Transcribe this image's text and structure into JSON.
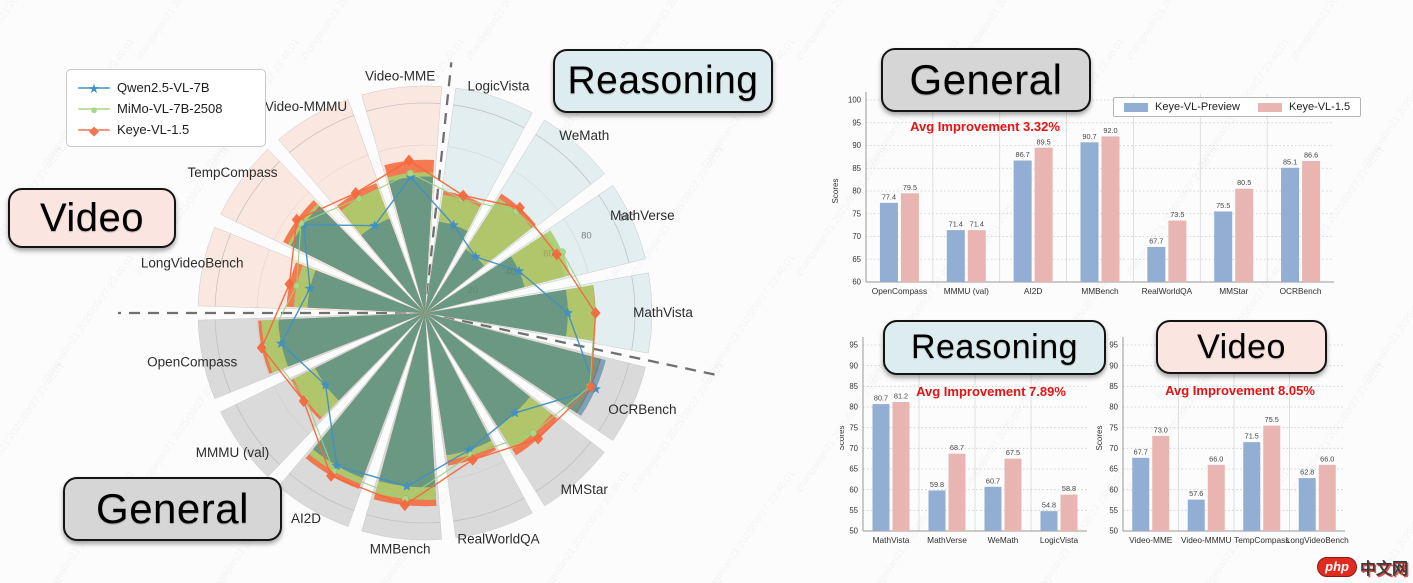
{
  "watermark": {
    "logo_text": "php",
    "site_text": "中文网",
    "stamp_text": "zhangwjian21 2025/09/27 23:46:01"
  },
  "boxes": {
    "radar_video": "Video",
    "radar_reasoning": "Reasoning",
    "radar_general": "General",
    "bar_general": "General",
    "bar_reasoning": "Reasoning",
    "bar_video": "Video"
  },
  "radar": {
    "legend": [
      {
        "label": "Qwen2.5-VL-7B",
        "glyph": "★",
        "color": "#3f90c4"
      },
      {
        "label": "MiMo-VL-7B-2508",
        "glyph": "●",
        "color": "#a9d585"
      },
      {
        "label": "Keye-VL-1.5",
        "glyph": "◆",
        "color": "#f4744d"
      }
    ]
  },
  "charts": {
    "general": {
      "improvement": "Avg Improvement 3.32%"
    },
    "reasoning": {
      "improvement": "Avg Improvement 7.89%"
    },
    "video": {
      "improvement": "Avg Improvement 8.05%"
    }
  },
  "chart_data": [
    {
      "type": "radar-polar-bar",
      "title": "Model comparison radar",
      "rlim": [
        0,
        100
      ],
      "rticks": [
        20,
        40,
        60,
        80,
        100
      ],
      "categories": [
        "LogicVista",
        "WeMath",
        "MathVerse",
        "MathVista",
        "OCRBench",
        "MMStar",
        "RealWorldQA",
        "MMBench",
        "AI2D",
        "MMMU (val)",
        "OpenCompass",
        "LongVideoBench",
        "TempCompass",
        "Video-MMMU",
        "Video-MME"
      ],
      "sections": [
        {
          "name": "Reasoning",
          "start_index": 0,
          "count": 4,
          "bg": "#e3eef0"
        },
        {
          "name": "General",
          "start_index": 4,
          "count": 7,
          "bg": "#dadadb"
        },
        {
          "name": "Video",
          "start_index": 11,
          "count": 4,
          "bg": "#fae8e0"
        }
      ],
      "series": [
        {
          "name": "Qwen2.5-VL-7B",
          "marker": "star",
          "line": "#3f90c4",
          "fill": "rgba(50,115,150,0.55)",
          "values": [
            44,
            36,
            49,
            68,
            89,
            64,
            68.5,
            83,
            84,
            58.5,
            70,
            56,
            71.5,
            48,
            65
          ]
        },
        {
          "name": "MiMo-VL-7B-2508",
          "marker": "circle",
          "line": "#9ed17d",
          "fill": "rgba(170,205,110,0.9)",
          "values": [
            57,
            65,
            71.5,
            81,
            86,
            77,
            71,
            89,
            87,
            70,
            78,
            62.5,
            73,
            63,
            67
          ]
        },
        {
          "name": "Keye-VL-1.5",
          "marker": "diamond",
          "line": "#f4683c",
          "fill": "rgba(242,106,62,0.88)",
          "values": [
            58.8,
            67.5,
            68.7,
            81.2,
            86.6,
            80.5,
            73.5,
            92,
            89.5,
            71.4,
            79.5,
            66,
            75.5,
            66,
            73
          ]
        }
      ]
    },
    {
      "type": "bar",
      "title": "General",
      "ylabel": "Scores",
      "ylim": [
        60,
        100
      ],
      "ytick_step": 5,
      "categories": [
        "OpenCompass",
        "MMMU (val)",
        "AI2D",
        "MMBench",
        "RealWorldQA",
        "MMStar",
        "OCRBench"
      ],
      "series": [
        {
          "name": "Keye-VL-Preview",
          "color": "#92aed3",
          "values": [
            77.4,
            71.4,
            86.7,
            90.7,
            67.7,
            75.5,
            85.1
          ]
        },
        {
          "name": "Keye-VL-1.5",
          "color": "#e9b5b2",
          "values": [
            79.5,
            71.4,
            89.5,
            92.0,
            73.5,
            80.5,
            86.6
          ]
        }
      ]
    },
    {
      "type": "bar",
      "title": "Reasoning",
      "ylabel": "Scores",
      "ylim": [
        50,
        95
      ],
      "ytick_step": 5,
      "categories": [
        "MathVista",
        "MathVerse",
        "WeMath",
        "LogicVista"
      ],
      "series": [
        {
          "name": "Keye-VL-Preview",
          "color": "#92aed3",
          "values": [
            80.7,
            59.8,
            60.7,
            54.8
          ]
        },
        {
          "name": "Keye-VL-1.5",
          "color": "#e9b5b2",
          "values": [
            81.2,
            68.7,
            67.5,
            58.8
          ]
        }
      ]
    },
    {
      "type": "bar",
      "title": "Video",
      "ylabel": "Scores",
      "ylim": [
        50,
        95
      ],
      "ytick_step": 5,
      "categories": [
        "Video-MME",
        "Video-MMMU",
        "TempCompass",
        "LongVideoBench"
      ],
      "series": [
        {
          "name": "Keye-VL-Preview",
          "color": "#92aed3",
          "values": [
            67.7,
            57.6,
            71.5,
            62.8
          ]
        },
        {
          "name": "Keye-VL-1.5",
          "color": "#e9b5b2",
          "values": [
            73.0,
            66.0,
            75.5,
            66.0
          ]
        }
      ]
    }
  ]
}
